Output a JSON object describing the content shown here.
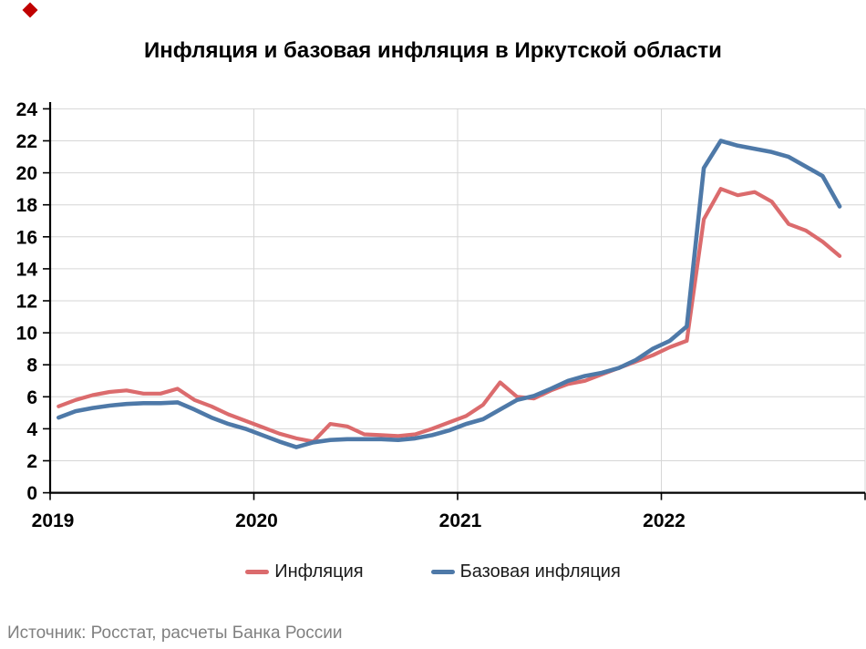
{
  "page": {
    "title": "Инфляция и базовая инфляция в Иркутской области",
    "source": "Источник: Росстат, расчеты Банка России",
    "corner_mark_color": "#C00000"
  },
  "legend": [
    {
      "label": "Инфляция",
      "color": "#DB6B6D"
    },
    {
      "label": "Базовая инфляция",
      "color": "#4E79A8"
    }
  ],
  "chart_data": {
    "type": "line",
    "title": "Инфляция и базовая инфляция в Иркутской области",
    "xlabel": "",
    "ylabel": "",
    "ylim": [
      0,
      24
    ],
    "y_ticks": [
      0,
      2,
      4,
      6,
      8,
      10,
      12,
      14,
      16,
      18,
      20,
      22,
      24
    ],
    "x_tick_labels": [
      "2019",
      "2020",
      "2021",
      "2022"
    ],
    "x_start": "2019-01",
    "x_end": "2022-11",
    "x_unit": "month",
    "grid": true,
    "legend_position": "bottom",
    "gridline_color": "#D6D6D6",
    "axis_color": "#000000",
    "series": [
      {
        "name": "Инфляция",
        "color": "#DB6B6D",
        "width": 4.2,
        "values": [
          5.4,
          5.8,
          6.1,
          6.3,
          6.4,
          6.2,
          6.2,
          6.5,
          5.8,
          5.4,
          4.9,
          4.5,
          4.1,
          3.7,
          3.4,
          3.2,
          4.3,
          4.15,
          3.65,
          3.6,
          3.55,
          3.65,
          4.0,
          4.4,
          4.8,
          5.5,
          6.9,
          6.0,
          5.9,
          6.4,
          6.8,
          7.0,
          7.4,
          7.8,
          8.2,
          8.6,
          9.1,
          9.5,
          17.1,
          19.0,
          18.6,
          18.8,
          18.2,
          16.8,
          16.4,
          15.7,
          14.8
        ]
      },
      {
        "name": "Базовая инфляция",
        "color": "#4E79A8",
        "width": 4.6,
        "values": [
          4.7,
          5.1,
          5.3,
          5.45,
          5.55,
          5.6,
          5.6,
          5.65,
          5.2,
          4.7,
          4.3,
          4.0,
          3.6,
          3.2,
          2.85,
          3.15,
          3.3,
          3.35,
          3.35,
          3.35,
          3.3,
          3.4,
          3.6,
          3.9,
          4.3,
          4.6,
          5.2,
          5.8,
          6.05,
          6.5,
          7.0,
          7.3,
          7.5,
          7.8,
          8.3,
          9.0,
          9.5,
          10.4,
          20.3,
          22.0,
          21.7,
          21.5,
          21.3,
          21.0,
          20.4,
          19.8,
          17.9
        ]
      }
    ]
  }
}
